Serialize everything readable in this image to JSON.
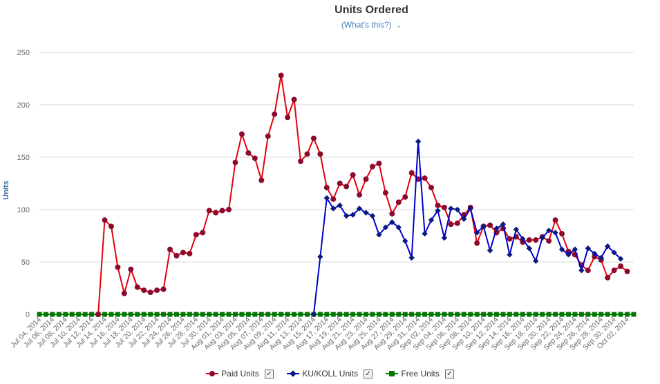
{
  "header": {
    "title": "Units Ordered",
    "subtitle": "(What's this?)",
    "subtitle_chevron": "⌄"
  },
  "legend": [
    {
      "label": "Paid Units",
      "checked": "✓"
    },
    {
      "label": "KU/KOLL Units",
      "checked": "✓"
    },
    {
      "label": "Free Units",
      "checked": "✓"
    }
  ],
  "chart_data": {
    "type": "line",
    "title": "Units Ordered",
    "ylabel": "Units",
    "xlabel": "",
    "ylim": [
      0,
      250
    ],
    "yticks": [
      0,
      50,
      100,
      150,
      200,
      250
    ],
    "grid": "horizontal",
    "legend_position": "bottom",
    "x_start": "Jul 04, 2014",
    "x_end": "Oct 03, 2014",
    "xtick_labels": [
      "Jul 04, 2014",
      "Jul 06, 2014",
      "Jul 08, 2014",
      "Jul 10, 2014",
      "Jul 12, 2014",
      "Jul 14, 2014",
      "Jul 16, 2014",
      "Jul 18, 2014",
      "Jul 20, 2014",
      "Jul 22, 2014",
      "Jul 24, 2014",
      "Jul 26, 2014",
      "Jul 28, 2014",
      "Jul 30, 2014",
      "Aug 01, 2014",
      "Aug 03, 2014",
      "Aug 05, 2014",
      "Aug 07, 2014",
      "Aug 09, 2014",
      "Aug 11, 2014",
      "Aug 13, 2014",
      "Aug 15, 2014",
      "Aug 17, 2014",
      "Aug 19, 2014",
      "Aug 21, 2014",
      "Aug 23, 2014",
      "Aug 25, 2014",
      "Aug 27, 2014",
      "Aug 29, 2014",
      "Aug 31, 2014",
      "Sep 02, 2014",
      "Sep 04, 2014",
      "Sep 06, 2014",
      "Sep 08, 2014",
      "Sep 10, 2014",
      "Sep 12, 2014",
      "Sep 14, 2014",
      "Sep 16, 2014",
      "Sep 18, 2014",
      "Sep 20, 2014",
      "Sep 22, 2014",
      "Sep 24, 2014",
      "Sep 26, 2014",
      "Sep 28, 2014",
      "Sep 30, 2014",
      "Oct 02, 2014"
    ],
    "series": [
      {
        "name": "Paid Units",
        "color": "#e6000c",
        "marker_color": "#8b0a2e",
        "marker": "circle",
        "start_date": "Jul 13, 2014",
        "values": [
          0,
          90,
          84,
          45,
          20,
          43,
          26,
          23,
          21,
          23,
          24,
          62,
          56,
          59,
          58,
          76,
          78,
          99,
          97,
          99,
          100,
          145,
          172,
          154,
          149,
          128,
          170,
          191,
          228,
          188,
          205,
          146,
          153,
          168,
          153,
          121,
          110,
          125,
          122,
          133,
          114,
          129,
          141,
          144,
          116,
          96,
          107,
          112,
          135,
          129,
          130,
          121,
          104,
          102,
          86,
          87,
          95,
          102,
          68,
          84,
          85,
          78,
          82,
          72,
          74,
          69,
          71,
          71,
          74,
          70,
          90,
          77,
          60,
          57,
          47,
          42,
          55,
          52,
          35,
          42,
          46,
          41
        ]
      },
      {
        "name": "KU/KOLL Units",
        "color": "#0000cc",
        "marker_color": "#0a1a80",
        "marker": "diamond",
        "start_date": "Aug 15, 2014",
        "values": [
          0,
          55,
          111,
          101,
          104,
          94,
          95,
          101,
          97,
          94,
          76,
          83,
          88,
          83,
          70,
          54,
          165,
          77,
          90,
          99,
          73,
          101,
          100,
          91,
          101,
          78,
          84,
          61,
          82,
          86,
          57,
          81,
          72,
          63,
          51,
          73,
          80,
          78,
          62,
          57,
          62,
          42,
          63,
          58,
          54,
          65,
          59,
          53
        ]
      },
      {
        "name": "Free Units",
        "color": "#007700",
        "marker_color": "#007700",
        "marker": "square",
        "start_date": "Jul 04, 2014",
        "values": [
          0,
          0,
          0,
          0,
          0,
          0,
          0,
          0,
          0,
          0,
          0,
          0,
          0,
          0,
          0,
          0,
          0,
          0,
          0,
          0,
          0,
          0,
          0,
          0,
          0,
          0,
          0,
          0,
          0,
          0,
          0,
          0,
          0,
          0,
          0,
          0,
          0,
          0,
          0,
          0,
          0,
          0,
          0,
          0,
          0,
          0,
          0,
          0,
          0,
          0,
          0,
          0,
          0,
          0,
          0,
          0,
          0,
          0,
          0,
          0,
          0,
          0,
          0,
          0,
          0,
          0,
          0,
          0,
          0,
          0,
          0,
          0,
          0,
          0,
          0,
          0,
          0,
          0,
          0,
          0,
          0,
          0,
          0,
          0,
          0,
          0,
          0,
          0,
          0,
          0,
          0,
          0
        ]
      }
    ]
  }
}
